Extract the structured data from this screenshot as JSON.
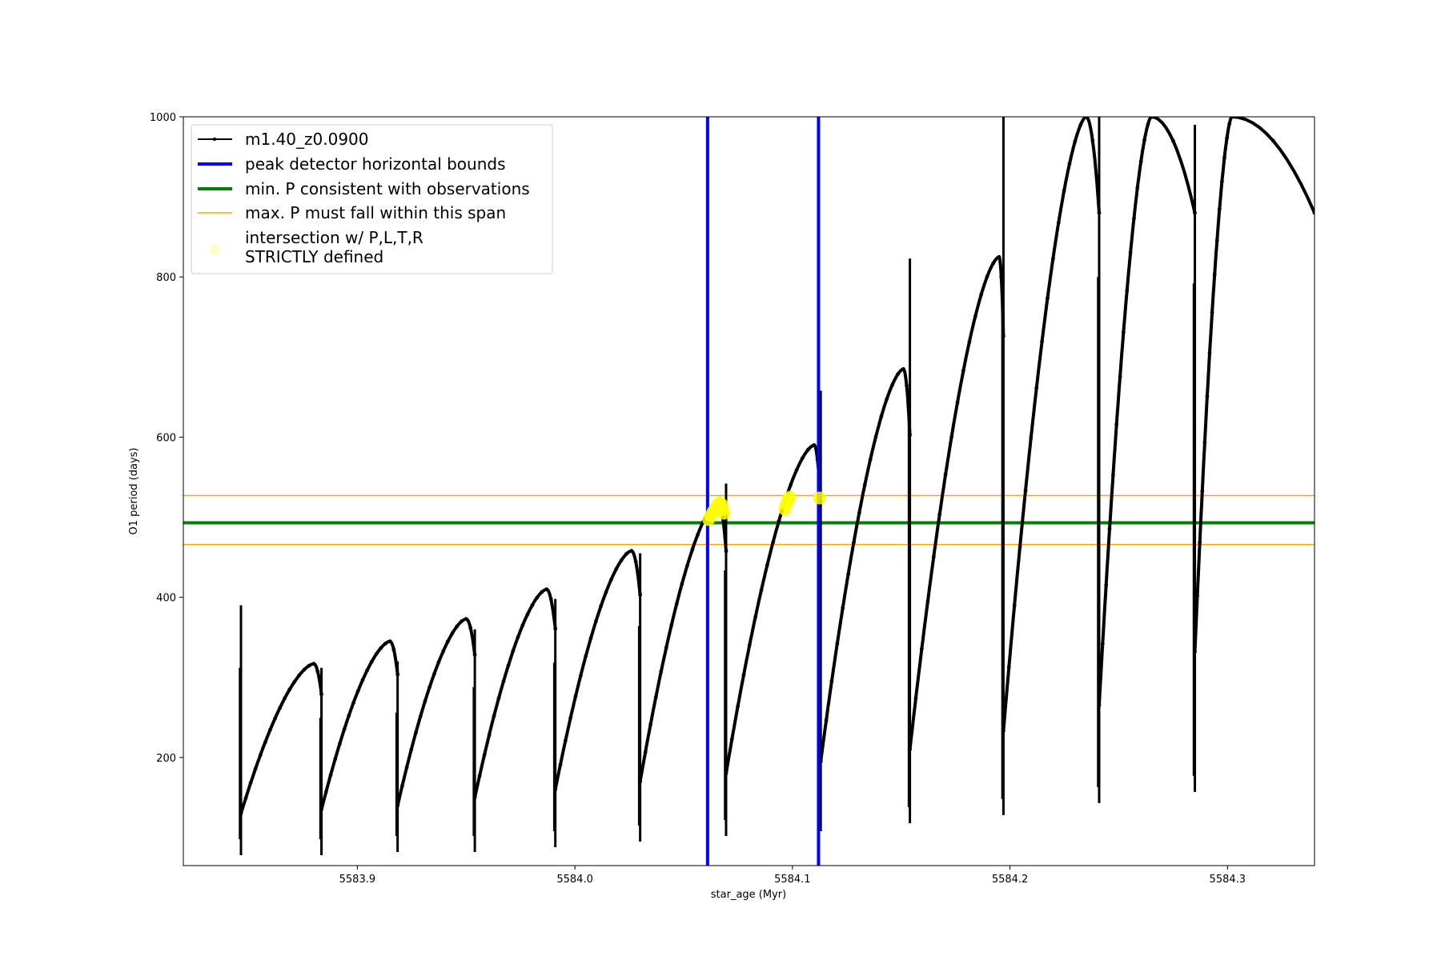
{
  "chart_data": {
    "type": "line",
    "xlabel": "star_age (Myr)",
    "ylabel": "O1 period (days)",
    "xlim": [
      5583.82,
      5584.34
    ],
    "ylim": [
      65,
      1000
    ],
    "xticks": [
      5583.9,
      5584.0,
      5584.1,
      5584.2,
      5584.3
    ],
    "xtick_labels": [
      "5583.9",
      "5584.0",
      "5584.1",
      "5584.2",
      "5584.3"
    ],
    "yticks": [
      200,
      400,
      600,
      800,
      1000
    ],
    "ytick_labels": [
      "200",
      "400",
      "600",
      "800",
      "1000"
    ],
    "grid": false,
    "legend_position": "top-left",
    "legend": [
      {
        "label": "m1.40_z0.0900",
        "style": "black-line-dots"
      },
      {
        "label": "peak detector horizontal bounds",
        "style": "blue-line"
      },
      {
        "label": "min. P consistent with observations",
        "style": "green-line"
      },
      {
        "label": "max. P must fall within this span",
        "style": "orange-line"
      },
      {
        "label_line1": "intersection w/ P,L,T,R",
        "label_line2": "STRICTLY defined",
        "style": "yellow-marker"
      }
    ],
    "colors": {
      "series": "#000000",
      "blue_bounds": "#0000ff",
      "green_min": "#008000",
      "orange_span": "#ffa500",
      "yellow_markers": "#ffff00"
    },
    "vertical_lines": [
      5584.061,
      5584.112
    ],
    "horizontal_lines": {
      "min_p": 493,
      "span_low": 466,
      "span_high": 527
    },
    "series": [
      {
        "name": "m1.40_z0.0900",
        "cycles": [
          {
            "t0": 5583.8465,
            "p0": 130,
            "tp": 5583.88,
            "pp": 317,
            "tdrop": 5583.8835,
            "spike_hi": 390,
            "spike_lo": 78
          },
          {
            "t0": 5583.8835,
            "p0": 135,
            "tp": 5583.915,
            "pp": 345,
            "tdrop": 5583.9185,
            "spike_hi": 312,
            "spike_lo": 78
          },
          {
            "t0": 5583.9185,
            "p0": 140,
            "tp": 5583.95,
            "pp": 373,
            "tdrop": 5583.954,
            "spike_hi": 320,
            "spike_lo": 82
          },
          {
            "t0": 5583.954,
            "p0": 150,
            "tp": 5583.987,
            "pp": 410,
            "tdrop": 5583.991,
            "spike_hi": 360,
            "spike_lo": 82
          },
          {
            "t0": 5583.991,
            "p0": 160,
            "tp": 5584.026,
            "pp": 458,
            "tdrop": 5584.03,
            "spike_hi": 398,
            "spike_lo": 88
          },
          {
            "t0": 5584.03,
            "p0": 170,
            "tp": 5584.066,
            "pp": 520,
            "tdrop": 5584.0695,
            "spike_hi": 455,
            "spike_lo": 95
          },
          {
            "t0": 5584.0695,
            "p0": 180,
            "tp": 5584.11,
            "pp": 590,
            "tdrop": 5584.113,
            "spike_hi": 542,
            "spike_lo": 102
          },
          {
            "t0": 5584.113,
            "p0": 195,
            "tp": 5584.151,
            "pp": 685,
            "tdrop": 5584.154,
            "spike_hi": 658,
            "spike_lo": 108
          },
          {
            "t0": 5584.154,
            "p0": 210,
            "tp": 5584.195,
            "pp": 825,
            "tdrop": 5584.197,
            "spike_hi": 823,
            "spike_lo": 118
          },
          {
            "t0": 5584.197,
            "p0": 233,
            "tp": 5584.235,
            "pp": 1000,
            "tdrop": 5584.241,
            "spike_hi": 1000,
            "spike_lo": 128
          },
          {
            "t0": 5584.241,
            "p0": 265,
            "tp": 5584.265,
            "pp": 1000,
            "tdrop": 5584.285,
            "spike_hi": 1000,
            "spike_lo": 143
          },
          {
            "t0": 5584.285,
            "p0": 332,
            "tp": 5584.302,
            "pp": 1000,
            "tdrop": 5584.34,
            "spike_hi": 990,
            "spike_lo": 157
          }
        ]
      }
    ],
    "intersection_points": [
      {
        "x": 5584.0615,
        "y": 497
      },
      {
        "x": 5584.0625,
        "y": 502
      },
      {
        "x": 5584.0635,
        "y": 507
      },
      {
        "x": 5584.0645,
        "y": 511
      },
      {
        "x": 5584.0655,
        "y": 515
      },
      {
        "x": 5584.0665,
        "y": 518
      },
      {
        "x": 5584.0675,
        "y": 516
      },
      {
        "x": 5584.068,
        "y": 510
      },
      {
        "x": 5584.0685,
        "y": 505
      },
      {
        "x": 5584.0965,
        "y": 510
      },
      {
        "x": 5584.0972,
        "y": 516
      },
      {
        "x": 5584.098,
        "y": 522
      },
      {
        "x": 5584.0988,
        "y": 525
      },
      {
        "x": 5584.1125,
        "y": 524
      }
    ]
  }
}
